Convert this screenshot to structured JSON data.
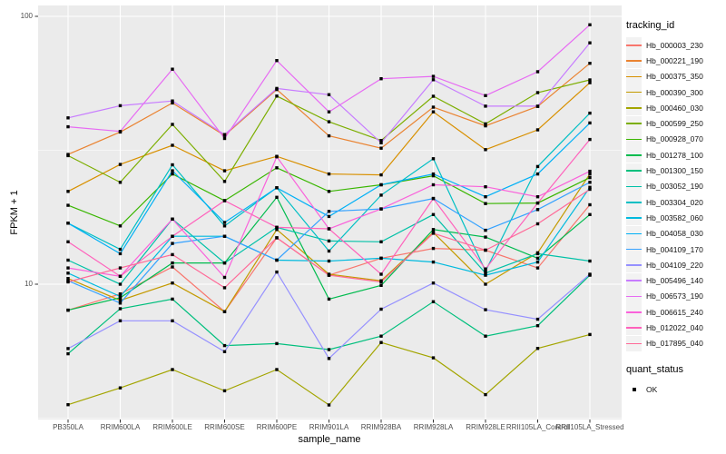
{
  "chart_data": {
    "type": "line",
    "title": "",
    "xlabel": "sample_name",
    "ylabel": "FPKM + 1",
    "y_scale": "log10",
    "ylim": [
      3.16,
      110
    ],
    "y_ticks": [
      {
        "label": "100",
        "value": 100
      },
      {
        "label": "10",
        "value": 10
      }
    ],
    "y_minor": [
      31.62,
      3.162
    ],
    "grid": "on",
    "legend_position": "right",
    "point_shape": "filled-square",
    "point_color": "#000000",
    "panel_bg": "#EBEBEB",
    "grid_color": "#FFFFFF",
    "categories": [
      "PB350LA",
      "RRIM600LA",
      "RRIM600LE",
      "RRIM600SE",
      "RRIM600PE",
      "RRIM901LA",
      "RRIM928BA",
      "RRIM928LA",
      "RRIM928LE",
      "RRII105LA_Control",
      "RRII105LA_Stressed"
    ],
    "series": [
      {
        "name": "Hb_000003_230",
        "color": "#F8766D",
        "values": [
          8.0,
          9.2,
          11.6,
          7.9,
          14.9,
          10.8,
          12.5,
          13.6,
          13.4,
          11.5,
          19.8
        ]
      },
      {
        "name": "Hb_000221_190",
        "color": "#EA8331",
        "values": [
          30.5,
          37.0,
          47.5,
          35.9,
          53.3,
          35.8,
          32.2,
          45.8,
          39.0,
          46.1,
          66.8
        ]
      },
      {
        "name": "Hb_000375_350",
        "color": "#D89000",
        "values": [
          22.2,
          28.0,
          33.0,
          26.5,
          30.0,
          25.8,
          25.6,
          44.0,
          31.8,
          37.7,
          56.5
        ]
      },
      {
        "name": "Hb_000390_300",
        "color": "#C49A00",
        "values": [
          10.5,
          8.7,
          10.1,
          7.9,
          16.0,
          10.9,
          10.3,
          15.6,
          10.0,
          13.1,
          25.8
        ]
      },
      {
        "name": "Hb_000460_030",
        "color": "#A3A500",
        "values": [
          3.55,
          4.1,
          4.8,
          4.0,
          4.8,
          3.54,
          6.06,
          5.31,
          3.87,
          5.76,
          6.49
        ]
      },
      {
        "name": "Hb_000599_250",
        "color": "#7CAE00",
        "values": [
          30.2,
          24.0,
          39.5,
          24.2,
          50.4,
          40.4,
          34.4,
          50.3,
          39.7,
          51.9,
          57.9
        ]
      },
      {
        "name": "Hb_000928_070",
        "color": "#39B600",
        "values": [
          19.7,
          16.5,
          25.8,
          20.5,
          27.2,
          22.2,
          23.5,
          25.4,
          20.0,
          20.1,
          25.0
        ]
      },
      {
        "name": "Hb_001278_100",
        "color": "#00BB4E",
        "values": [
          8.0,
          8.9,
          12.0,
          12.0,
          21.1,
          8.8,
          9.9,
          16.0,
          15.0,
          12.5,
          18.2
        ]
      },
      {
        "name": "Hb_001300_150",
        "color": "#00BF7D",
        "values": [
          5.5,
          8.1,
          8.8,
          5.9,
          6.0,
          5.7,
          6.4,
          8.6,
          6.4,
          7.0,
          10.8
        ]
      },
      {
        "name": "Hb_003052_190",
        "color": "#00C1A7",
        "values": [
          12.3,
          10.0,
          17.5,
          12.0,
          16.3,
          14.5,
          14.4,
          18.2,
          11.0,
          13.0,
          12.2
        ]
      },
      {
        "name": "Hb_003304_020",
        "color": "#00BFC4",
        "values": [
          16.9,
          13.5,
          27.9,
          16.5,
          22.9,
          13.3,
          21.5,
          29.4,
          11.2,
          27.5,
          43.5
        ]
      },
      {
        "name": "Hb_003582_060",
        "color": "#00BADE",
        "values": [
          11.0,
          9.0,
          15.1,
          15.1,
          12.3,
          12.2,
          12.5,
          12.1,
          10.8,
          12.1,
          23.0
        ]
      },
      {
        "name": "Hb_004058_030",
        "color": "#00B0F6",
        "values": [
          16.9,
          13.0,
          26.5,
          17.0,
          22.9,
          17.9,
          23.5,
          25.8,
          21.2,
          25.8,
          40.0
        ]
      },
      {
        "name": "Hb_004109_170",
        "color": "#35A2FF",
        "values": [
          10.3,
          8.5,
          14.2,
          15.1,
          12.3,
          18.7,
          19.1,
          20.9,
          15.9,
          19.0,
          24.0
        ]
      },
      {
        "name": "Hb_004109_220",
        "color": "#9590FF",
        "values": [
          5.75,
          7.3,
          7.3,
          5.6,
          11.1,
          5.28,
          8.07,
          10.1,
          8.03,
          7.4,
          10.9
        ]
      },
      {
        "name": "Hb_005496_140",
        "color": "#C77CFF",
        "values": [
          41.8,
          46.4,
          48.3,
          36.2,
          53.8,
          51.0,
          33.7,
          58.0,
          46.2,
          46.2,
          79.6
        ]
      },
      {
        "name": "Hb_006573_190",
        "color": "#E76BF3",
        "values": [
          38.7,
          37.2,
          63.5,
          35.0,
          68.4,
          44.0,
          58.5,
          59.7,
          50.6,
          62.1,
          93.0
        ]
      },
      {
        "name": "Hb_006615_240",
        "color": "#FA62DB",
        "values": [
          11.5,
          10.7,
          17.5,
          10.6,
          29.9,
          16.1,
          19.1,
          23.5,
          23.1,
          21.2,
          26.4
        ]
      },
      {
        "name": "Hb_012022_040",
        "color": "#FF62BC",
        "values": [
          14.4,
          10.7,
          15.1,
          20.5,
          16.3,
          16.1,
          10.9,
          20.9,
          11.4,
          20.1,
          34.7
        ]
      },
      {
        "name": "Hb_017895_040",
        "color": "#FF6A98",
        "values": [
          10.2,
          11.5,
          12.9,
          9.7,
          14.9,
          10.8,
          10.2,
          15.5,
          13.4,
          16.8,
          22.6
        ]
      }
    ]
  },
  "legend": {
    "tracking_title": "tracking_id",
    "quant_title": "quant_status",
    "quant_items": [
      {
        "label": "OK"
      }
    ]
  }
}
